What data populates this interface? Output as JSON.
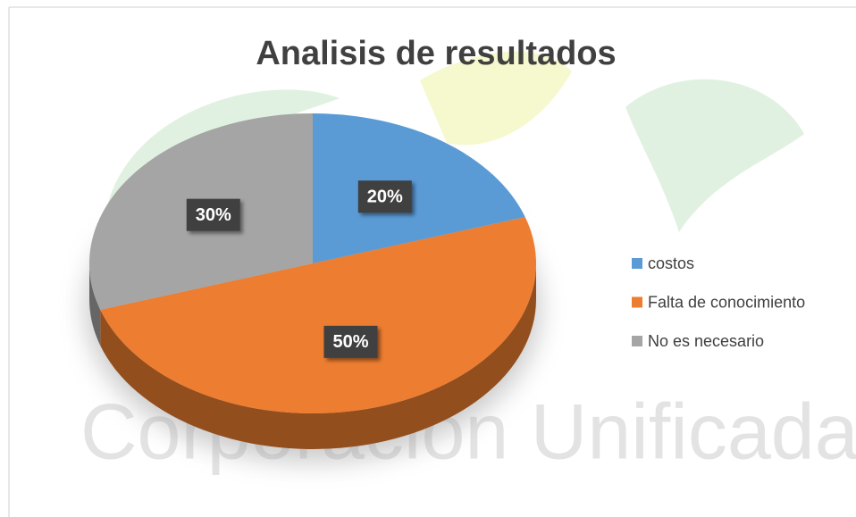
{
  "chart_data": {
    "type": "pie",
    "title": "Analisis de resultados",
    "watermark": "Corporación Unificada N",
    "categories": [
      "costos",
      "Falta de conocimiento",
      "No es necesario"
    ],
    "values": [
      20,
      50,
      30
    ],
    "value_labels": [
      "20%",
      "50%",
      "30%"
    ],
    "colors": [
      "#5b9bd5",
      "#ed7d31",
      "#a5a5a5"
    ],
    "legend": "right"
  }
}
